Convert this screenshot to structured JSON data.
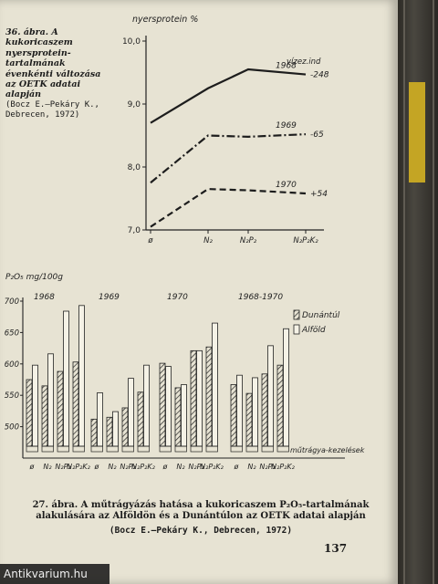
{
  "caption1": {
    "title": "36. ábra. A kukoricaszem nyersprotein-tartalmának évenkénti változása az OETK adatai alapján",
    "source": "(Bocz E.—Pekáry K., Debrecen, 1972)"
  },
  "caption2": {
    "title": "27. ábra. A műtrágyázás hatása a kukoricaszem P₂O₅-tartalmának alakulására az Alföldön és a Dunántúlon az OETK adatai alapján",
    "source": "(Bocz E.—Pekáry K., Debrecen, 1972)"
  },
  "page_number": "137",
  "watermark": "Antikvarium.hu",
  "colors": {
    "paper": "#e7e3d3",
    "ink": "#222222",
    "spine_band": "#c4a524"
  },
  "chart_data": [
    {
      "type": "line",
      "ylabel": "nyersprotein %",
      "ylim": [
        7.0,
        10.0
      ],
      "yticks": [
        "10,0",
        "9,0",
        "8,0",
        "7,0"
      ],
      "categories": [
        "ø",
        "N₂",
        "N₂P₂",
        "N₂P₂K₂"
      ],
      "legend_header": "vízez.ind",
      "series": [
        {
          "name": "1968",
          "index": "-248",
          "values": [
            8.7,
            9.25,
            9.55,
            9.47
          ],
          "dash": "solid"
        },
        {
          "name": "1969",
          "index": "-65",
          "values": [
            7.75,
            8.5,
            8.48,
            8.52
          ],
          "dash": "dashdot"
        },
        {
          "name": "1970",
          "index": "+54",
          "values": [
            7.05,
            7.65,
            7.63,
            7.58
          ],
          "dash": "dashed"
        }
      ]
    },
    {
      "type": "bar",
      "ylabel": "P₂O₅ mg/100g",
      "ylim": [
        450,
        700
      ],
      "yticks": [
        "700",
        "650",
        "600",
        "550",
        "500"
      ],
      "group_labels": [
        "1968",
        "1969",
        "1970",
        "1968-1970"
      ],
      "categories": [
        "ø",
        "N₂",
        "N₂P₂",
        "N₂P₂K₂"
      ],
      "xlabel": "műtrágya-kezelések",
      "legend": [
        "Dunántúl",
        "Alföld"
      ],
      "series": [
        {
          "name": "Dunántúl",
          "values": [
            [
              575,
              565,
              588,
              603
            ],
            [
              512,
              515,
              530,
              555
            ],
            [
              601,
              562,
              621,
              627
            ],
            [
              567,
              553,
              584,
              598
            ]
          ]
        },
        {
          "name": "Alföld",
          "values": [
            [
              598,
              616,
              684,
              693
            ],
            [
              554,
              524,
              577,
              598
            ],
            [
              596,
              567,
              621,
              665
            ],
            [
              582,
              578,
              629,
              656
            ]
          ]
        }
      ]
    }
  ]
}
